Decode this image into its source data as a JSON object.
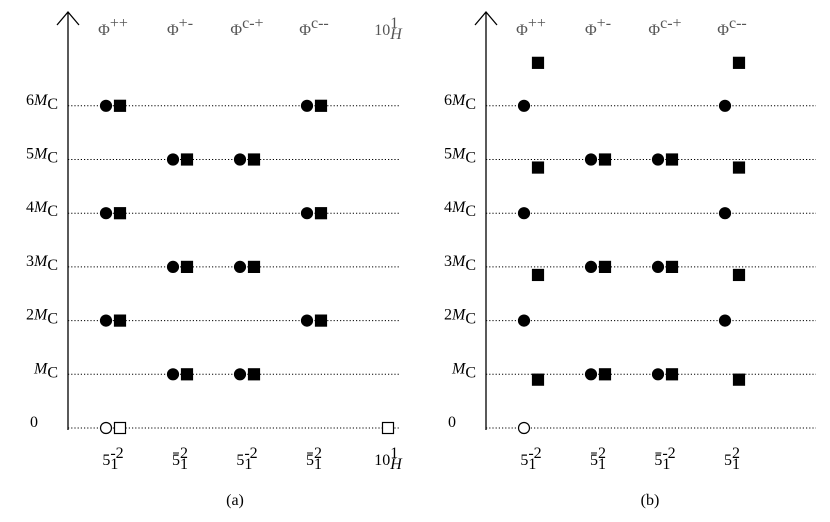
{
  "panels": [
    {
      "caption": "(a)",
      "level_labels": [
        {
          "pre": "0"
        },
        {
          "var": "M",
          "sub": "C"
        },
        {
          "pre": "2",
          "var": "M",
          "sub": "C"
        },
        {
          "pre": "3",
          "var": "M",
          "sub": "C"
        },
        {
          "pre": "4",
          "var": "M",
          "sub": "C"
        },
        {
          "pre": "5",
          "var": "M",
          "sub": "C"
        },
        {
          "pre": "6",
          "var": "M",
          "sub": "C"
        }
      ],
      "columns": [
        {
          "header": {
            "base": "Φ",
            "sup": "++"
          },
          "footer": {
            "base": "5",
            "sub": "1",
            "sup": "-2"
          },
          "markers": [
            {
              "level": 0,
              "shape": "circle",
              "filled": false
            },
            {
              "level": 0,
              "shape": "square",
              "filled": false
            },
            {
              "level": 2,
              "shape": "circle",
              "filled": true
            },
            {
              "level": 2,
              "shape": "square",
              "filled": true
            },
            {
              "level": 4,
              "shape": "circle",
              "filled": true
            },
            {
              "level": 4,
              "shape": "square",
              "filled": true
            },
            {
              "level": 6,
              "shape": "circle",
              "filled": true
            },
            {
              "level": 6,
              "shape": "square",
              "filled": true
            }
          ]
        },
        {
          "header": {
            "base": "Φ",
            "sup": "+-"
          },
          "footer": {
            "base": "5",
            "bar": true,
            "sub": "1",
            "sup": "2"
          },
          "markers": [
            {
              "level": 1,
              "shape": "circle",
              "filled": true
            },
            {
              "level": 1,
              "shape": "square",
              "filled": true
            },
            {
              "level": 3,
              "shape": "circle",
              "filled": true
            },
            {
              "level": 3,
              "shape": "square",
              "filled": true
            },
            {
              "level": 5,
              "shape": "circle",
              "filled": true
            },
            {
              "level": 5,
              "shape": "square",
              "filled": true
            }
          ]
        },
        {
          "header": {
            "base": "Φ",
            "sup": "c-+"
          },
          "footer": {
            "base": "5",
            "sub": "1",
            "sup": "-2"
          },
          "markers": [
            {
              "level": 1,
              "shape": "circle",
              "filled": true
            },
            {
              "level": 1,
              "shape": "square",
              "filled": true
            },
            {
              "level": 3,
              "shape": "circle",
              "filled": true
            },
            {
              "level": 3,
              "shape": "square",
              "filled": true
            },
            {
              "level": 5,
              "shape": "circle",
              "filled": true
            },
            {
              "level": 5,
              "shape": "square",
              "filled": true
            }
          ]
        },
        {
          "header": {
            "base": "Φ",
            "sup": "c--"
          },
          "footer": {
            "base": "5",
            "bar": true,
            "sub": "1",
            "sup": "2"
          },
          "markers": [
            {
              "level": 2,
              "shape": "circle",
              "filled": true
            },
            {
              "level": 2,
              "shape": "square",
              "filled": true
            },
            {
              "level": 4,
              "shape": "circle",
              "filled": true
            },
            {
              "level": 4,
              "shape": "square",
              "filled": true
            },
            {
              "level": 6,
              "shape": "circle",
              "filled": true
            },
            {
              "level": 6,
              "shape": "square",
              "filled": true
            }
          ]
        },
        {
          "header": {
            "base": "10",
            "sub": "H",
            "sup": "1"
          },
          "footer": {
            "base": "10",
            "sub": "H",
            "sup": "1"
          },
          "markers": [
            {
              "level": 0,
              "shape": "square",
              "filled": false
            }
          ]
        }
      ]
    },
    {
      "caption": "(b)",
      "level_labels": [
        {
          "pre": "0"
        },
        {
          "var": "M",
          "sub": "C"
        },
        {
          "pre": "2",
          "var": "M",
          "sub": "C"
        },
        {
          "pre": "3",
          "var": "M",
          "sub": "C"
        },
        {
          "pre": "4",
          "var": "M",
          "sub": "C"
        },
        {
          "pre": "5",
          "var": "M",
          "sub": "C"
        },
        {
          "pre": "6",
          "var": "M",
          "sub": "C"
        }
      ],
      "columns": [
        {
          "header": {
            "base": "Φ",
            "sup": "++"
          },
          "footer": {
            "base": "5",
            "sub": "1",
            "sup": "-2"
          },
          "markers": [
            {
              "level": 0,
              "shape": "circle",
              "filled": false
            },
            {
              "level": 2,
              "shape": "circle",
              "filled": true
            },
            {
              "level": 4,
              "shape": "circle",
              "filled": true
            },
            {
              "level": 6,
              "shape": "circle",
              "filled": true
            },
            {
              "level": 0.9,
              "shape": "square",
              "filled": true
            },
            {
              "level": 2.85,
              "shape": "square",
              "filled": true
            },
            {
              "level": 4.85,
              "shape": "square",
              "filled": true
            },
            {
              "level": 6.8,
              "shape": "square",
              "filled": true
            }
          ]
        },
        {
          "header": {
            "base": "Φ",
            "sup": "+-"
          },
          "footer": {
            "base": "5",
            "bar": true,
            "sub": "1",
            "sup": "2"
          },
          "markers": [
            {
              "level": 1,
              "shape": "circle",
              "filled": true
            },
            {
              "level": 1,
              "shape": "square",
              "filled": true
            },
            {
              "level": 3,
              "shape": "circle",
              "filled": true
            },
            {
              "level": 3,
              "shape": "square",
              "filled": true
            },
            {
              "level": 5,
              "shape": "circle",
              "filled": true
            },
            {
              "level": 5,
              "shape": "square",
              "filled": true
            }
          ]
        },
        {
          "header": {
            "base": "Φ",
            "sup": "c-+"
          },
          "footer": {
            "base": "5",
            "bar": true,
            "sub": "1",
            "sup": "-2"
          },
          "markers": [
            {
              "level": 1,
              "shape": "circle",
              "filled": true
            },
            {
              "level": 1,
              "shape": "square",
              "filled": true
            },
            {
              "level": 3,
              "shape": "circle",
              "filled": true
            },
            {
              "level": 3,
              "shape": "square",
              "filled": true
            },
            {
              "level": 5,
              "shape": "circle",
              "filled": true
            },
            {
              "level": 5,
              "shape": "square",
              "filled": true
            }
          ]
        },
        {
          "header": {
            "base": "Φ",
            "sup": "c--"
          },
          "footer": {
            "base": "5",
            "sub": "1",
            "sup": "2"
          },
          "markers": [
            {
              "level": 2,
              "shape": "circle",
              "filled": true
            },
            {
              "level": 4,
              "shape": "circle",
              "filled": true
            },
            {
              "level": 6,
              "shape": "circle",
              "filled": true
            },
            {
              "level": 0.9,
              "shape": "square",
              "filled": true
            },
            {
              "level": 2.85,
              "shape": "square",
              "filled": true
            },
            {
              "level": 4.85,
              "shape": "square",
              "filled": true
            },
            {
              "level": 6.8,
              "shape": "square",
              "filled": true
            }
          ]
        }
      ]
    }
  ]
}
